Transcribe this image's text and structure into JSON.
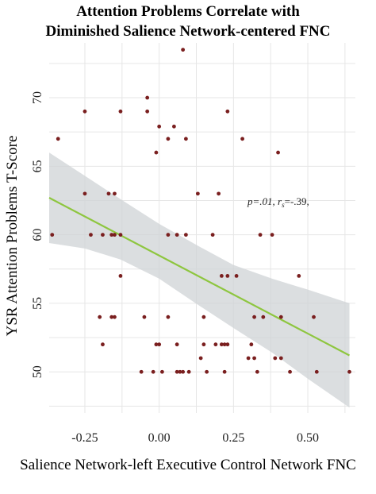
{
  "chart_data": {
    "type": "scatter",
    "title": [
      "Attention Problems Correlate with",
      "Diminished Salience Network-centered FNC"
    ],
    "xlabel": "Salience Network-left Executive Control Network FNC",
    "ylabel": "YSR Attention Problems T-Score",
    "xlim": [
      -0.37,
      0.66
    ],
    "ylim": [
      47,
      74
    ],
    "xticks": [
      -0.25,
      0.0,
      0.25,
      0.5
    ],
    "xtick_labels": [
      "-0.25",
      "0.00",
      "0.25",
      "0.50"
    ],
    "yticks": [
      50,
      55,
      60,
      65,
      70
    ],
    "ytick_labels": [
      "50",
      "55",
      "60",
      "65",
      "70"
    ],
    "grid": true,
    "annotation": {
      "p": "p=.01, ",
      "rs": "r",
      "rs_sub": "s",
      "rs_val": "=-.39,",
      "x": 0.3,
      "y": 62
    },
    "fit_line": {
      "x": [
        -0.37,
        0.64
      ],
      "y": [
        62.7,
        51.2
      ]
    },
    "confidence_band": {
      "x": [
        -0.37,
        -0.25,
        -0.13,
        0.0,
        0.13,
        0.25,
        0.38,
        0.5,
        0.64
      ],
      "upper": [
        66.0,
        64.3,
        62.6,
        60.8,
        59.2,
        57.8,
        56.8,
        56.0,
        55.0
      ],
      "lower": [
        59.4,
        59.0,
        58.2,
        56.8,
        54.9,
        53.2,
        51.4,
        49.5,
        47.4
      ]
    },
    "colors": {
      "points": "#7a1f1f",
      "fit": "#8ec63f",
      "band": "#cfd3d6",
      "grid": "#e6e6e6"
    },
    "points": [
      [
        0.08,
        73.5
      ],
      [
        -0.04,
        70
      ],
      [
        -0.04,
        69
      ],
      [
        -0.13,
        69
      ],
      [
        -0.25,
        69
      ],
      [
        0.23,
        69
      ],
      [
        -0.34,
        67
      ],
      [
        0.0,
        67.9
      ],
      [
        0.05,
        67.9
      ],
      [
        0.03,
        67
      ],
      [
        0.09,
        67
      ],
      [
        0.28,
        67
      ],
      [
        -0.01,
        66
      ],
      [
        0.4,
        66
      ],
      [
        -0.25,
        63
      ],
      [
        -0.15,
        63
      ],
      [
        -0.17,
        63
      ],
      [
        0.13,
        63
      ],
      [
        0.2,
        63
      ],
      [
        -0.36,
        60
      ],
      [
        -0.23,
        60
      ],
      [
        -0.19,
        60
      ],
      [
        -0.16,
        60
      ],
      [
        -0.15,
        60
      ],
      [
        -0.13,
        60
      ],
      [
        0.03,
        60
      ],
      [
        0.06,
        60
      ],
      [
        0.09,
        60
      ],
      [
        0.18,
        60
      ],
      [
        0.34,
        60
      ],
      [
        0.38,
        60
      ],
      [
        -0.13,
        57
      ],
      [
        0.21,
        57
      ],
      [
        0.23,
        57
      ],
      [
        0.26,
        57
      ],
      [
        0.47,
        57
      ],
      [
        -0.2,
        54
      ],
      [
        -0.16,
        54
      ],
      [
        -0.15,
        54
      ],
      [
        -0.05,
        54
      ],
      [
        0.03,
        54
      ],
      [
        0.15,
        54
      ],
      [
        0.32,
        54
      ],
      [
        0.35,
        54
      ],
      [
        0.41,
        54
      ],
      [
        0.52,
        54
      ],
      [
        -0.19,
        52
      ],
      [
        -0.01,
        52
      ],
      [
        0.0,
        52
      ],
      [
        0.06,
        52
      ],
      [
        0.15,
        52
      ],
      [
        0.19,
        52
      ],
      [
        0.21,
        52
      ],
      [
        0.22,
        52
      ],
      [
        0.23,
        52
      ],
      [
        0.31,
        52
      ],
      [
        0.14,
        51
      ],
      [
        0.3,
        51
      ],
      [
        0.32,
        51
      ],
      [
        0.39,
        51
      ],
      [
        0.41,
        51
      ],
      [
        -0.06,
        50
      ],
      [
        -0.02,
        50
      ],
      [
        0.01,
        50
      ],
      [
        0.06,
        50
      ],
      [
        0.07,
        50
      ],
      [
        0.08,
        50
      ],
      [
        0.1,
        50
      ],
      [
        0.16,
        50
      ],
      [
        0.22,
        50
      ],
      [
        0.33,
        50
      ],
      [
        0.44,
        50
      ],
      [
        0.53,
        50
      ],
      [
        0.64,
        50
      ]
    ]
  }
}
